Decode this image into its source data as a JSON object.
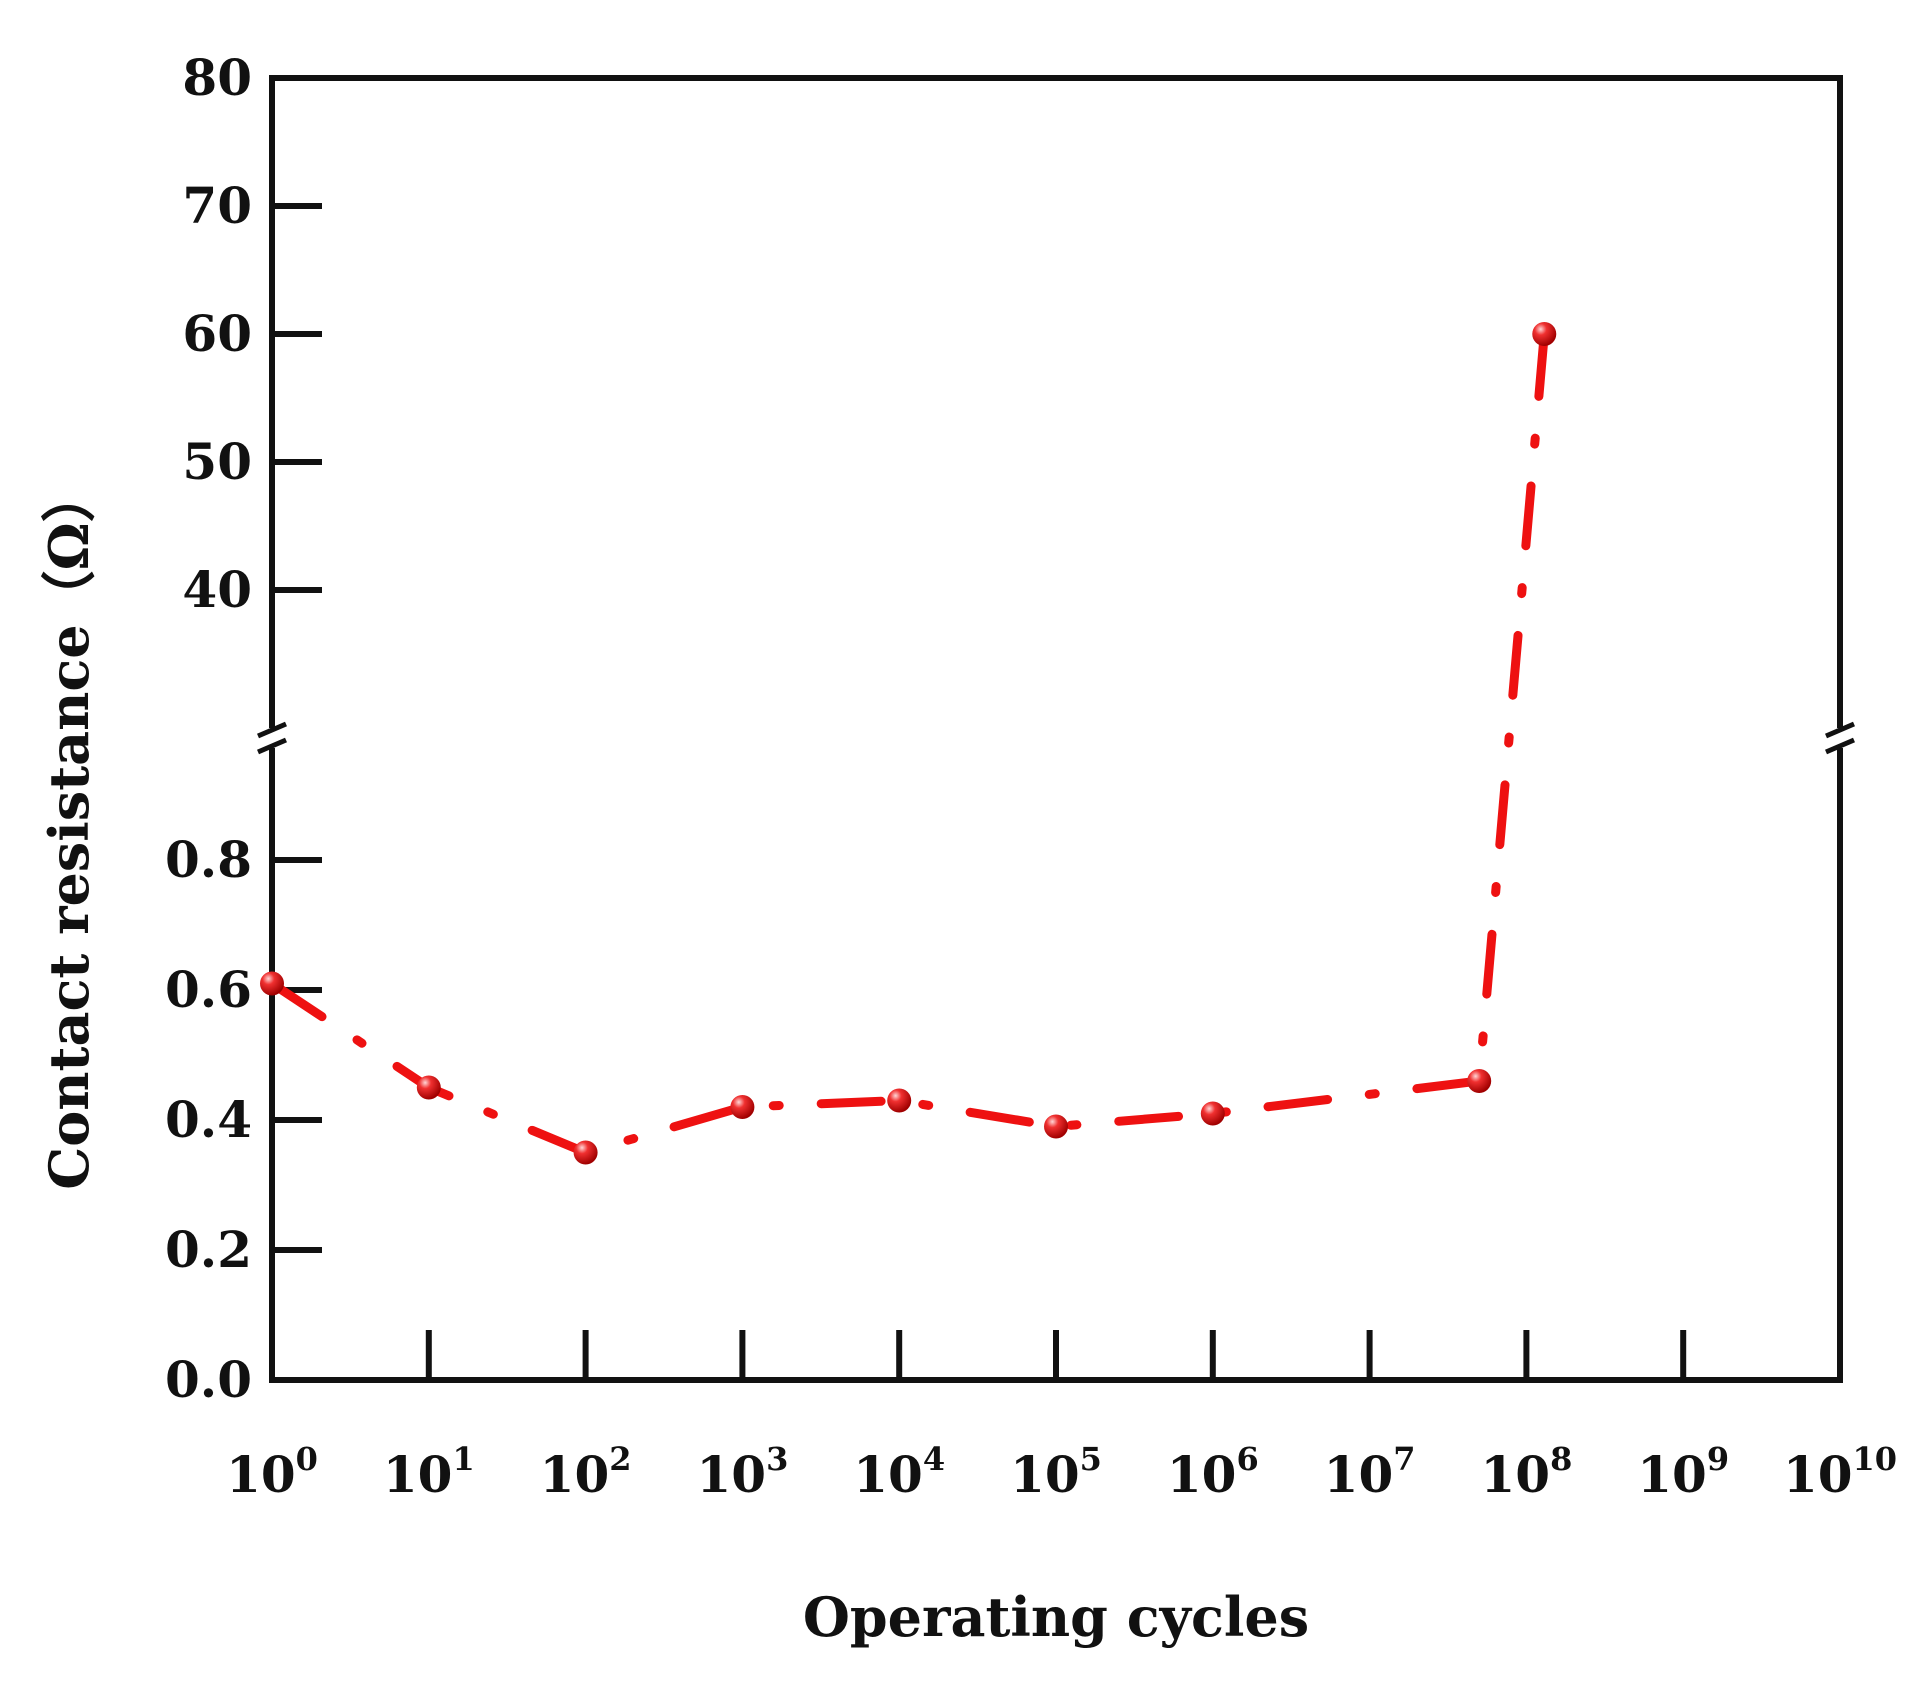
{
  "chart_data": {
    "type": "line",
    "title": "",
    "xlabel": "Operating cycles",
    "ylabel": "Contact resistance（Ω）",
    "x_scale": "log10",
    "xlim": [
      1,
      10000000000
    ],
    "x_ticks": [
      {
        "base": "10",
        "exp": "0"
      },
      {
        "base": "10",
        "exp": "1"
      },
      {
        "base": "10",
        "exp": "2"
      },
      {
        "base": "10",
        "exp": "3"
      },
      {
        "base": "10",
        "exp": "4"
      },
      {
        "base": "10",
        "exp": "5"
      },
      {
        "base": "10",
        "exp": "6"
      },
      {
        "base": "10",
        "exp": "7"
      },
      {
        "base": "10",
        "exp": "8"
      },
      {
        "base": "10",
        "exp": "9"
      },
      {
        "base": "10",
        "exp": "10"
      }
    ],
    "y_axis_break": true,
    "y_lower_range": [
      0,
      1.0
    ],
    "y_upper_range": [
      30,
      80
    ],
    "y_lower_ticks": [
      "0.0",
      "0.2",
      "0.4",
      "0.6",
      "0.8"
    ],
    "y_upper_ticks": [
      "40",
      "50",
      "60",
      "70",
      "80"
    ],
    "grid": false,
    "series": [
      {
        "name": "Contact resistance",
        "color": "#ee1111",
        "line_style": "dash-dot",
        "marker": "sphere",
        "x": [
          1,
          10,
          100,
          1000,
          10000,
          100000,
          1000000,
          50000000,
          130000000
        ],
        "y": [
          0.61,
          0.45,
          0.35,
          0.42,
          0.43,
          0.39,
          0.41,
          0.46,
          60
        ]
      }
    ]
  },
  "colors": {
    "series": "#ee1111",
    "axis": "#111111",
    "background": "#ffffff"
  }
}
